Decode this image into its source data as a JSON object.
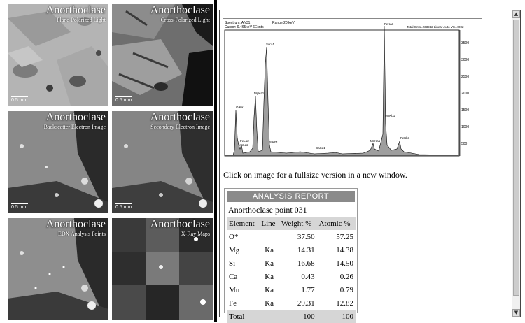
{
  "thumbnails": [
    {
      "title": "Anorthoclase",
      "subtitle": "Plane-Polarized Light",
      "scale": "0.5 mm"
    },
    {
      "title": "Anorthoclase",
      "subtitle": "Cross-Polarized Light",
      "scale": "0.5 mm"
    },
    {
      "title": "Anorthoclase",
      "subtitle": "Backscatter Electron Image",
      "scale": "0.5 mm"
    },
    {
      "title": "Anorthoclase",
      "subtitle": "Secondary Electron Image",
      "scale": "0.5 mm"
    },
    {
      "title": "Anorthoclase",
      "subtitle": "EDX Analysis Points",
      "scale": ""
    },
    {
      "title": "Anorthoclase",
      "subtitle": "X-Ray Maps",
      "scale": ""
    }
  ],
  "spectrum": {
    "header_left": "Spectrum: AN31",
    "header_mid": "Range:20 keV",
    "cursor_line": "Cursor: 9.465keV 6Ecnts",
    "header_right": "Total Cnts=233242 Linear Auto VS=4002",
    "peak_labels": [
      "O Ka1",
      "MgKa1",
      "SiKa1",
      "FeLa2",
      "MnLa2",
      "SiKb1",
      "CaKa1",
      "MnKa1",
      "FeKa1",
      "MnKb1",
      "FeKb1"
    ],
    "y_ticks": [
      "3500",
      "3000",
      "2500",
      "2000",
      "1500",
      "1000",
      "500"
    ]
  },
  "caption": "Click on image for a fullsize version in a new window.",
  "report": {
    "header": "ANALYSIS REPORT",
    "name": "Anorthoclase point 031",
    "columns": [
      "Element",
      "Line",
      "Weight %",
      "Atomic %"
    ],
    "rows": [
      {
        "element": "O*",
        "line": "",
        "weight": "37.50",
        "atomic": "57.25"
      },
      {
        "element": "Mg",
        "line": "Ka",
        "weight": "14.31",
        "atomic": "14.38"
      },
      {
        "element": "Si",
        "line": "Ka",
        "weight": "16.68",
        "atomic": "14.50"
      },
      {
        "element": "Ca",
        "line": "Ka",
        "weight": "0.43",
        "atomic": "0.26"
      },
      {
        "element": "Mn",
        "line": "Ka",
        "weight": "1.77",
        "atomic": "0.79"
      },
      {
        "element": "Fe",
        "line": "Ka",
        "weight": "29.31",
        "atomic": "12.82"
      }
    ],
    "total": {
      "label": "Total",
      "weight": "100",
      "atomic": "100"
    }
  },
  "scroll": {
    "up": "▲",
    "down": "▼"
  }
}
